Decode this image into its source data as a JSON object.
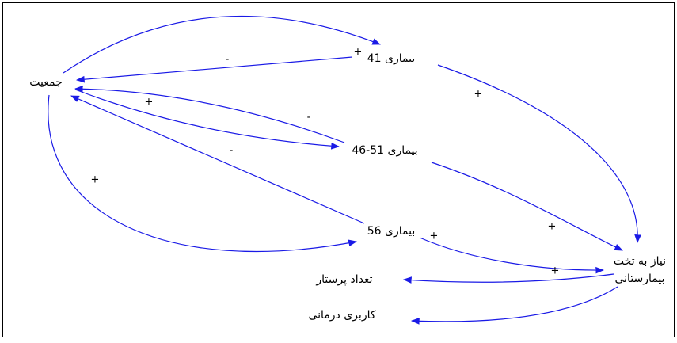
{
  "nodes": [
    {
      "label": "جمعیت"
    },
    {
      "label": "بیماری 41"
    },
    {
      "label": "بیماری 51-46"
    },
    {
      "label": "بیماری 56"
    },
    {
      "lines": [
        "نیاز به تخت",
        "بیمارستانی"
      ]
    },
    {
      "label": "تعداد پرستار"
    },
    {
      "label": "کاربری درمانی"
    }
  ],
  "polarities": [
    "-",
    "+",
    "+",
    "+",
    "-",
    "-",
    "+",
    "+",
    "+",
    "+"
  ]
}
